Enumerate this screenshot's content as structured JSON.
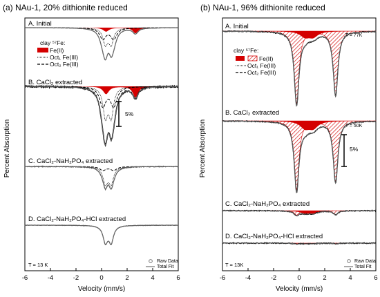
{
  "chart_data": [
    {
      "type": "line",
      "title": "(a) NAu-1, 20% dithionite reduced",
      "xlabel": "Velocity (mm/s)",
      "ylabel": "Percent Absorption",
      "x_ticks": [
        "-6",
        "-4",
        "-2",
        "0",
        "2",
        "4",
        "6"
      ],
      "xlim": [
        -6,
        6
      ],
      "temperature_label": "T = 13 K",
      "scale_bar_label": "5%",
      "legend": {
        "title": "clay ⁵⁷Fe:",
        "entries": [
          "Fe(II)",
          "Oct₁ Fe(III)",
          "Oct₂ Fe(III)"
        ],
        "data_entries": [
          "Raw Data",
          "Total Fit"
        ]
      },
      "panels": [
        {
          "label": "A. Initial",
          "fe2_fill": "solid",
          "oct1_depth": 0.72,
          "oct2_depth": 0.55,
          "fe2_depth": 0.14,
          "noise": 0.004
        },
        {
          "label": "B. CaCl₂ extracted",
          "fe2_fill": "solid",
          "oct1_depth": 0.95,
          "oct2_depth": 0.7,
          "fe2_depth": 0.2,
          "noise": 0.012
        },
        {
          "label": "C. CaCl₂-NaH₂PO₄ extracted",
          "fe2_fill": "none",
          "oct1_depth": 0.72,
          "oct2_depth": 0.18,
          "fe2_depth": 0.0,
          "noise": 0.01
        },
        {
          "label": "D. CaCl₂-NaH₂PO₄-HCl extracted",
          "fe2_fill": "none",
          "oct1_depth": 0.78,
          "oct2_depth": 0.0,
          "fe2_depth": 0.0,
          "noise": 0.006
        }
      ]
    },
    {
      "type": "line",
      "title": "(b) NAu-1, 96% dithionite reduced",
      "xlabel": "Velocity (mm/s)",
      "ylabel": "Percent Absorption",
      "x_ticks": [
        "-6",
        "-4",
        "-2",
        "0",
        "2",
        "4",
        "6"
      ],
      "xlim": [
        -6,
        6
      ],
      "temperature_label": "T = 13K",
      "scale_bar_label": "5%",
      "legend": {
        "title": "clay ⁵⁷Fe:",
        "entries": [
          "Fe(II)",
          "Oct₁ Fe(III)",
          "Oct₂ Fe(III)"
        ],
        "data_entries": [
          "Raw Data",
          "Total Fit"
        ]
      },
      "panels": [
        {
          "label": "A. Initial",
          "temp": "T = 77K",
          "fe2_depth": 1.0,
          "fe3_depth": 0.12
        },
        {
          "label": "B. CaCl₂ extracted",
          "temp": "T = 50K",
          "fe2_depth": 0.95,
          "fe3_depth": 0.15
        },
        {
          "label": "C. CaCl₂-NaH₂PO₄ extracted",
          "temp": "",
          "fe2_depth": 0.06,
          "fe3_depth": 0.05
        },
        {
          "label": "D. CaCl₂-NaH₂PO₄-HCl extracted",
          "temp": "",
          "fe2_depth": 0.01,
          "fe3_depth": 0.01
        }
      ]
    }
  ],
  "colors": {
    "fe2": "#d40000",
    "fit": "#666666",
    "raw": "#000000"
  }
}
